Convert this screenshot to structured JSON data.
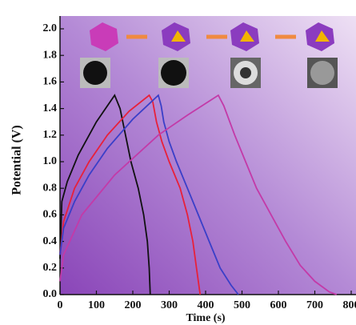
{
  "chart_data": {
    "type": "line",
    "xlabel": "Time (s)",
    "ylabel": "Potential (V)",
    "xlim": [
      0,
      800
    ],
    "ylim": [
      0,
      2.0
    ],
    "xticks": [
      0,
      100,
      200,
      300,
      400,
      500,
      600,
      700,
      800
    ],
    "yticks": [
      {
        "value": 0,
        "label": "0.0"
      },
      0.2,
      0.4,
      0.6,
      0.8,
      {
        "value": 1,
        "label": "1.0"
      },
      1.2,
      1.4,
      1.6,
      1.8,
      {
        "value": 2,
        "label": "2.0"
      }
    ],
    "series": [
      {
        "color": "#111111",
        "x": [
          0,
          5,
          20,
          50,
          100,
          150,
          165,
          180,
          195,
          215,
          230,
          240,
          245,
          248
        ],
        "values": [
          0.27,
          0.7,
          0.85,
          1.05,
          1.3,
          1.5,
          1.4,
          1.2,
          1.0,
          0.8,
          0.6,
          0.4,
          0.2,
          0
        ]
      },
      {
        "color": "#e8203a",
        "x": [
          0,
          10,
          40,
          80,
          130,
          190,
          245,
          255,
          265,
          280,
          300,
          330,
          350,
          365,
          375,
          385
        ],
        "values": [
          0.3,
          0.55,
          0.8,
          1.0,
          1.2,
          1.38,
          1.5,
          1.45,
          1.3,
          1.15,
          1.0,
          0.8,
          0.6,
          0.4,
          0.2,
          0
        ]
      },
      {
        "color": "#3a3fc8",
        "x": [
          0,
          10,
          40,
          80,
          130,
          200,
          270,
          278,
          285,
          300,
          320,
          350,
          380,
          410,
          440,
          470,
          490
        ],
        "values": [
          0.3,
          0.5,
          0.7,
          0.9,
          1.1,
          1.32,
          1.5,
          1.42,
          1.3,
          1.15,
          1.0,
          0.8,
          0.6,
          0.4,
          0.2,
          0.07,
          0
        ]
      },
      {
        "color": "#c33aa8",
        "x": [
          0,
          10,
          60,
          150,
          270,
          350,
          435,
          450,
          480,
          510,
          540,
          580,
          620,
          660,
          700,
          740,
          760
        ],
        "values": [
          0.1,
          0.3,
          0.6,
          0.9,
          1.2,
          1.35,
          1.5,
          1.42,
          1.2,
          1.0,
          0.8,
          0.6,
          0.4,
          0.22,
          0.1,
          0.02,
          0
        ]
      }
    ]
  }
}
